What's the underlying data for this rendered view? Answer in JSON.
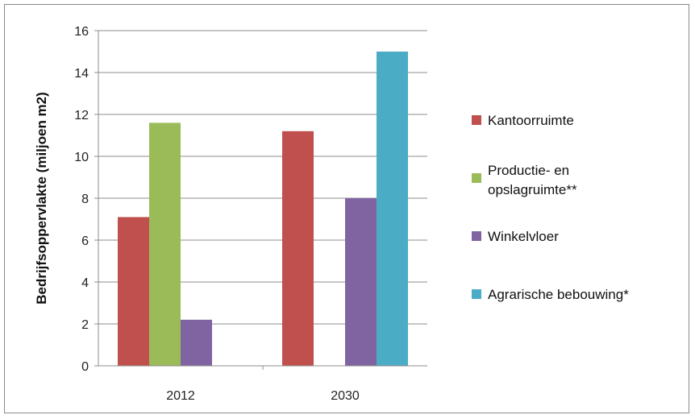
{
  "chart_data": {
    "type": "bar",
    "title": "",
    "xlabel": "",
    "ylabel": "Bedrijfsoppervlakte (miljoen m2)",
    "ylim": [
      0,
      16
    ],
    "yticks": [
      0,
      2,
      4,
      6,
      8,
      10,
      12,
      14,
      16
    ],
    "categories": [
      "2012",
      "2030"
    ],
    "grid": "horizontal",
    "legend_position": "right",
    "series": [
      {
        "name": "Kantoorruimte",
        "color": "#c0504d",
        "values": [
          7.1,
          11.2
        ]
      },
      {
        "name": "Productie- en opslagruimte**",
        "color": "#9bbb59",
        "values": [
          11.6,
          null
        ]
      },
      {
        "name": "Winkelvloer",
        "color": "#8064a2",
        "values": [
          2.2,
          8.0
        ]
      },
      {
        "name": "Agrarische bebouwing*",
        "color": "#4bacc6",
        "values": [
          null,
          15.0
        ]
      }
    ]
  }
}
